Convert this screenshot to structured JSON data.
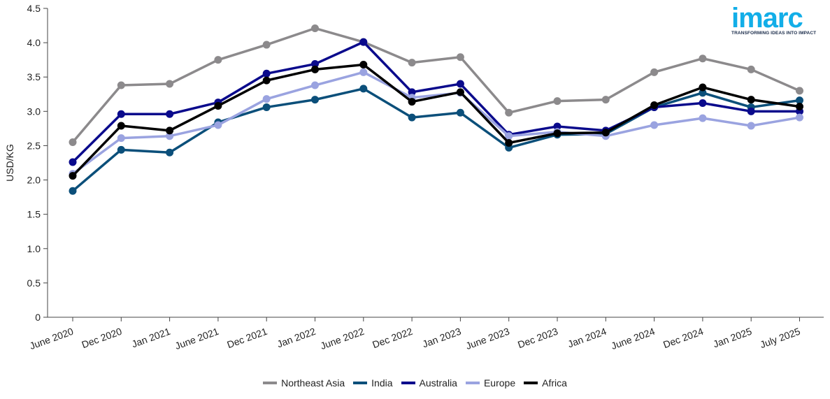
{
  "logo": {
    "text": "imarc",
    "tagline": "TRANSFORMING IDEAS INTO IMPACT"
  },
  "chart_data": {
    "type": "line",
    "title": "",
    "xlabel": "",
    "ylabel": "USD/KG",
    "ylim": [
      0,
      4.5
    ],
    "yticks": [
      "0",
      "0.5",
      "1.0",
      "1.5",
      "2.0",
      "2.5",
      "3.0",
      "3.5",
      "4.0",
      "4.5"
    ],
    "grid": false,
    "legend_position": "bottom",
    "categories": [
      "June 2020",
      "Dec 2020",
      "Jan 2021",
      "June 2021",
      "Dec 2021",
      "Jan 2022",
      "June 2022",
      "Dec 2022",
      "Jan 2023",
      "June 2023",
      "Dec 2023",
      "Jan 2024",
      "June 2024",
      "Dec 2024",
      "Jan 2025",
      "July 2025"
    ],
    "series": [
      {
        "name": "Northeast Asia",
        "color": "#8c8a8c",
        "values": [
          2.55,
          3.38,
          3.4,
          3.75,
          3.97,
          4.21,
          4.01,
          3.71,
          3.79,
          2.98,
          3.15,
          3.17,
          3.57,
          3.77,
          3.61,
          3.3
        ]
      },
      {
        "name": "India",
        "color": "#0b4f7a",
        "values": [
          1.84,
          2.44,
          2.4,
          2.84,
          3.06,
          3.17,
          3.33,
          2.91,
          2.98,
          2.47,
          2.66,
          2.67,
          3.06,
          3.27,
          3.06,
          3.16
        ]
      },
      {
        "name": "Australia",
        "color": "#0a0a8c",
        "values": [
          2.26,
          2.96,
          2.96,
          3.13,
          3.55,
          3.69,
          4.01,
          3.28,
          3.4,
          2.66,
          2.78,
          2.72,
          3.06,
          3.12,
          3.0,
          3.0
        ]
      },
      {
        "name": "Europe",
        "color": "#9aa3e0",
        "values": [
          2.09,
          2.61,
          2.64,
          2.8,
          3.18,
          3.38,
          3.57,
          3.2,
          3.27,
          2.64,
          2.7,
          2.64,
          2.8,
          2.9,
          2.79,
          2.91
        ]
      },
      {
        "name": "Africa",
        "color": "#000000",
        "values": [
          2.06,
          2.79,
          2.72,
          3.08,
          3.45,
          3.61,
          3.68,
          3.14,
          3.28,
          2.54,
          2.68,
          2.69,
          3.09,
          3.35,
          3.17,
          3.07
        ]
      }
    ]
  }
}
